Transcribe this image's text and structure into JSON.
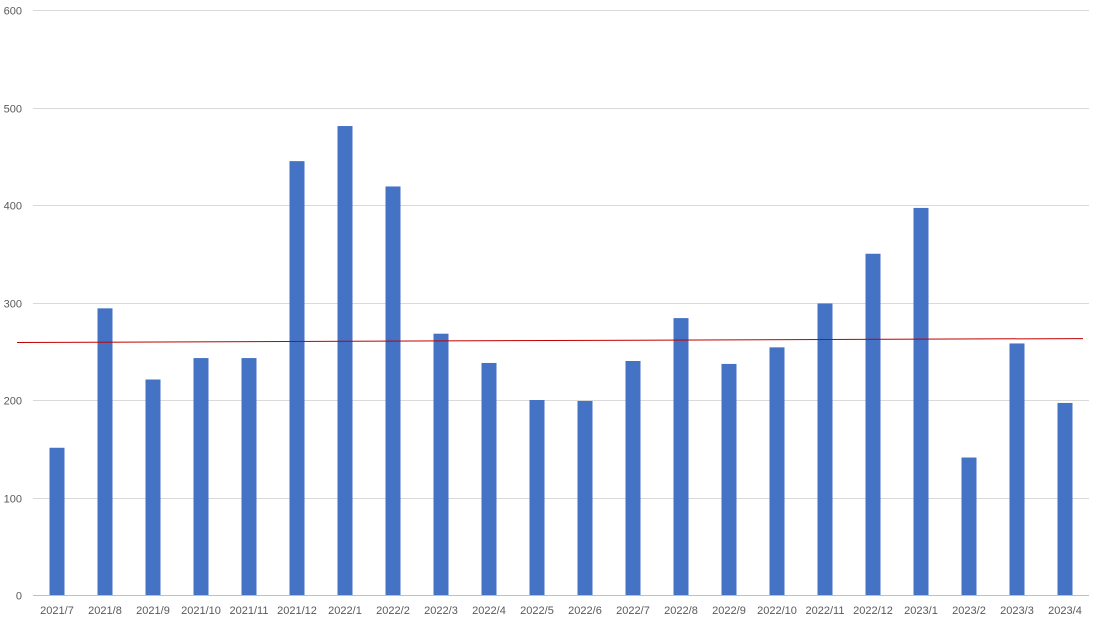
{
  "chart_data": {
    "type": "bar",
    "title": "",
    "xlabel": "",
    "ylabel": "",
    "ylim": [
      0,
      600
    ],
    "yticks": [
      0,
      100,
      200,
      300,
      400,
      500,
      600
    ],
    "grid": true,
    "legend": "none",
    "categories": [
      "2021/7",
      "2021/8",
      "2021/9",
      "2021/10",
      "2021/11",
      "2021/12",
      "2022/1",
      "2022/2",
      "2022/3",
      "2022/4",
      "2022/5",
      "2022/6",
      "2022/7",
      "2022/8",
      "2022/9",
      "2022/10",
      "2022/11",
      "2022/12",
      "2023/1",
      "2023/2",
      "2023/3",
      "2023/4"
    ],
    "series": [
      {
        "values": [
          151,
          294,
          221,
          243,
          243,
          445,
          481,
          419,
          268,
          238,
          200,
          199,
          240,
          284,
          237,
          254,
          299,
          350,
          397,
          141,
          258,
          197
        ],
        "color": "#4472C4"
      }
    ],
    "trendline": {
      "type": "linear",
      "start": 259,
      "end": 263,
      "color": "#C00000"
    }
  }
}
